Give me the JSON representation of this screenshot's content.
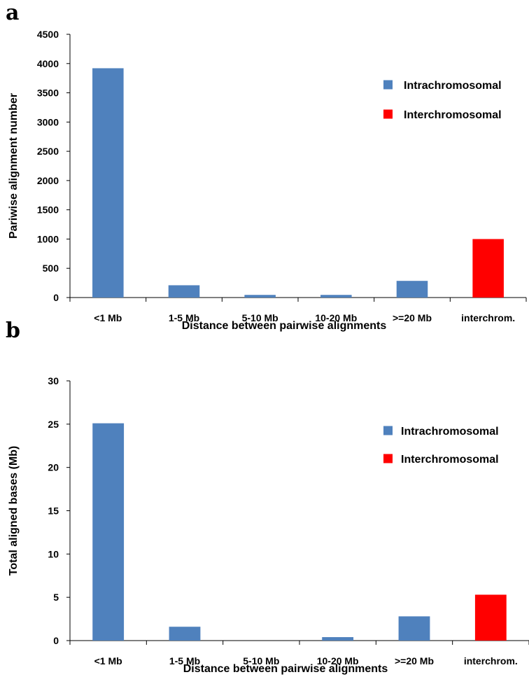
{
  "colors": {
    "intra": "#4f81bd",
    "inter": "#ff0000",
    "axis": "#000000"
  },
  "chart_data": [
    {
      "panel_label": "a",
      "type": "bar",
      "categories": [
        "<1 Mb",
        "1-5 Mb",
        "5-10 Mb",
        "10-20 Mb",
        ">=20 Mb",
        "interchrom."
      ],
      "series": [
        {
          "name": "Intrachromosomal",
          "values": [
            3920,
            210,
            45,
            45,
            285,
            null
          ]
        },
        {
          "name": "Interchromosomal",
          "values": [
            null,
            null,
            null,
            null,
            null,
            1000
          ]
        }
      ],
      "ylabel": "Pariwise alignment  number",
      "xlabel": "Distance between pairwise alignments",
      "ylim": [
        0,
        4500
      ],
      "yticks": [
        0,
        500,
        1000,
        1500,
        2000,
        2500,
        3000,
        3500,
        4000,
        4500
      ],
      "legend": "right",
      "grid": false
    },
    {
      "panel_label": "b",
      "type": "bar",
      "categories": [
        "<1 Mb",
        "1-5 Mb",
        "5-10 Mb",
        "10-20 Mb",
        ">=20 Mb",
        "interchrom."
      ],
      "series": [
        {
          "name": "Intrachromosomal",
          "values": [
            25.1,
            1.6,
            0,
            0.4,
            2.8,
            null
          ]
        },
        {
          "name": "Interchromosomal",
          "values": [
            null,
            null,
            null,
            null,
            null,
            5.3
          ]
        }
      ],
      "ylabel": "Total aligned bases (Mb)",
      "xlabel": "Distance between pairwise alignments",
      "ylim": [
        0,
        30
      ],
      "yticks": [
        0,
        5,
        10,
        15,
        20,
        25,
        30
      ],
      "legend": "right",
      "grid": false
    }
  ]
}
